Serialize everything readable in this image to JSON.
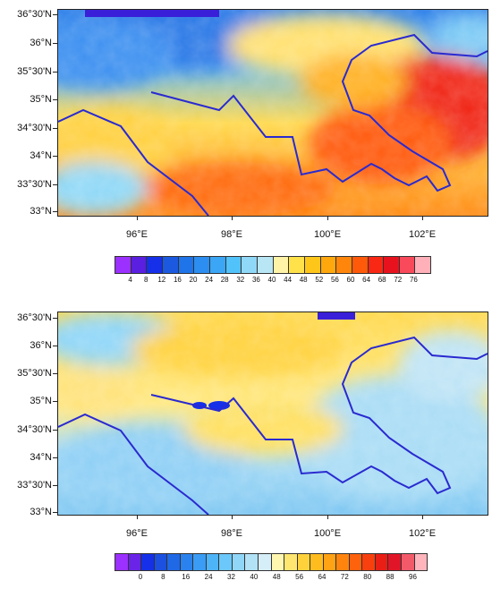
{
  "top_panel": {
    "lat_labels": [
      "36°30'N",
      "36°N",
      "35°30'N",
      "35°N",
      "34°30'N",
      "34°N",
      "33°30'N",
      "33°N"
    ],
    "lon_labels": [
      "96°E",
      "98°E",
      "100°E",
      "102°E"
    ],
    "colorbar": {
      "labels": [
        "4",
        "8",
        "12",
        "16",
        "20",
        "24",
        "28",
        "32",
        "36",
        "40",
        "44",
        "48",
        "52",
        "56",
        "60",
        "64",
        "68",
        "72",
        "76"
      ],
      "colors": [
        "#9b30ff",
        "#5a1fe0",
        "#1530e8",
        "#1b5ae0",
        "#1e74e8",
        "#2b8ef0",
        "#3aa6f5",
        "#52c2fa",
        "#8fd8f7",
        "#b8e6f5",
        "#fff3a8",
        "#ffe14a",
        "#ffc61a",
        "#ffa80d",
        "#ff860a",
        "#ff5a0a",
        "#f82814",
        "#e8121e",
        "#f84a5a",
        "#ffb0b8"
      ]
    }
  },
  "bottom_panel": {
    "lat_labels": [
      "36°30'N",
      "36°N",
      "35°30'N",
      "35°N",
      "34°30'N",
      "34°N",
      "33°30'N",
      "33°N"
    ],
    "lon_labels": [
      "96°E",
      "98°E",
      "100°E",
      "102°E"
    ],
    "colorbar": {
      "labels": [
        "0",
        "8",
        "16",
        "24",
        "32",
        "40",
        "48",
        "56",
        "64",
        "72",
        "80",
        "88",
        "96"
      ],
      "colors": [
        "#9b30ff",
        "#6a24e8",
        "#1530e8",
        "#1b50e0",
        "#1f68e6",
        "#2a82ee",
        "#3a9cf4",
        "#4eb4f8",
        "#6cc8fa",
        "#8fd6f8",
        "#b2e2f6",
        "#d6eef8",
        "#fff6b0",
        "#ffe670",
        "#ffd23c",
        "#ffbc1e",
        "#ffa214",
        "#ff840e",
        "#ff620c",
        "#f8400e",
        "#ea1e14",
        "#e01628",
        "#f25a6a",
        "#ffb4bc"
      ]
    }
  },
  "colors": {
    "boundary": "#2a2ad0",
    "frame": "#222222"
  }
}
